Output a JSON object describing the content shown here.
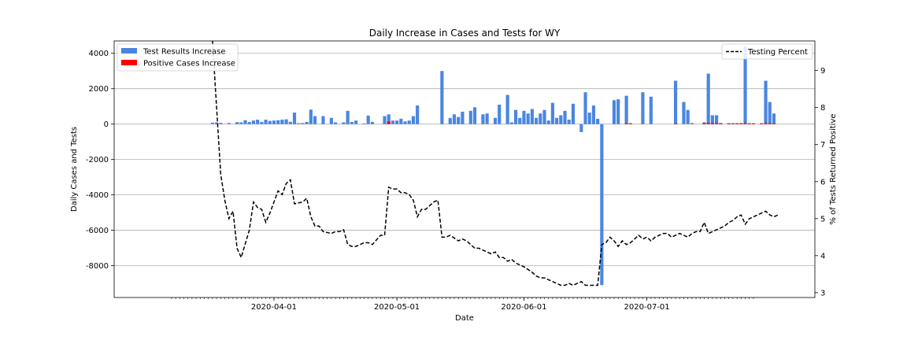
{
  "chart_data": {
    "type": "bar+line",
    "title": "Daily Increase in Cases and Tests for WY",
    "xlabel": "Date",
    "ylabel": "Daily Cases and Tests",
    "ylabel_right": "% of Tests Returned Positive",
    "x_start": "2020-03-07",
    "x_end": "2020-07-27",
    "x_ticks": [
      "2020-04-01",
      "2020-05-01",
      "2020-06-01",
      "2020-07-01"
    ],
    "ylim": [
      -9800,
      4700
    ],
    "yticks": [
      4000,
      2000,
      0,
      -2000,
      -4000,
      -6000,
      -8000
    ],
    "ylim_right": [
      2.87,
      9.8
    ],
    "yticks_right": [
      3,
      4,
      5,
      6,
      7,
      8,
      9
    ],
    "grid": "horizontal",
    "legend_left": "top-left",
    "legend_right": "top-right",
    "colors": {
      "tests": "#4a86e0",
      "positive": "#ff0000",
      "percent": "#000000",
      "grid": "#b0b0b0"
    },
    "series": [
      {
        "name": "Test Results Increase",
        "color": "#4a86e0",
        "points": [
          [
            "2020-03-17",
            80
          ],
          [
            "2020-03-18",
            100
          ],
          [
            "2020-03-19",
            70
          ],
          [
            "2020-03-21",
            60
          ],
          [
            "2020-03-23",
            110
          ],
          [
            "2020-03-24",
            100
          ],
          [
            "2020-03-25",
            220
          ],
          [
            "2020-03-26",
            120
          ],
          [
            "2020-03-27",
            200
          ],
          [
            "2020-03-28",
            250
          ],
          [
            "2020-03-29",
            120
          ],
          [
            "2020-03-30",
            250
          ],
          [
            "2020-03-31",
            180
          ],
          [
            "2020-04-01",
            200
          ],
          [
            "2020-04-02",
            220
          ],
          [
            "2020-04-03",
            250
          ],
          [
            "2020-04-04",
            270
          ],
          [
            "2020-04-05",
            130
          ],
          [
            "2020-04-06",
            650
          ],
          [
            "2020-04-07",
            50
          ],
          [
            "2020-04-08",
            60
          ],
          [
            "2020-04-09",
            120
          ],
          [
            "2020-04-10",
            820
          ],
          [
            "2020-04-11",
            450
          ],
          [
            "2020-04-13",
            450
          ],
          [
            "2020-04-15",
            350
          ],
          [
            "2020-04-16",
            100
          ],
          [
            "2020-04-18",
            100
          ],
          [
            "2020-04-19",
            750
          ],
          [
            "2020-04-20",
            120
          ],
          [
            "2020-04-21",
            200
          ],
          [
            "2020-04-23",
            40
          ],
          [
            "2020-04-24",
            480
          ],
          [
            "2020-04-25",
            120
          ],
          [
            "2020-04-28",
            450
          ],
          [
            "2020-04-29",
            550
          ],
          [
            "2020-04-30",
            200
          ],
          [
            "2020-05-01",
            200
          ],
          [
            "2020-05-02",
            300
          ],
          [
            "2020-05-03",
            150
          ],
          [
            "2020-05-04",
            200
          ],
          [
            "2020-05-05",
            450
          ],
          [
            "2020-05-06",
            1050
          ],
          [
            "2020-05-12",
            3000
          ],
          [
            "2020-05-14",
            350
          ],
          [
            "2020-05-15",
            550
          ],
          [
            "2020-05-16",
            400
          ],
          [
            "2020-05-17",
            700
          ],
          [
            "2020-05-19",
            750
          ],
          [
            "2020-05-20",
            950
          ],
          [
            "2020-05-22",
            550
          ],
          [
            "2020-05-23",
            600
          ],
          [
            "2020-05-25",
            350
          ],
          [
            "2020-05-26",
            1100
          ],
          [
            "2020-05-28",
            1650
          ],
          [
            "2020-05-29",
            100
          ],
          [
            "2020-05-30",
            800
          ],
          [
            "2020-05-31",
            350
          ],
          [
            "2020-06-01",
            750
          ],
          [
            "2020-06-02",
            600
          ],
          [
            "2020-06-03",
            850
          ],
          [
            "2020-06-04",
            350
          ],
          [
            "2020-06-05",
            600
          ],
          [
            "2020-06-06",
            800
          ],
          [
            "2020-06-07",
            200
          ],
          [
            "2020-06-08",
            1200
          ],
          [
            "2020-06-09",
            350
          ],
          [
            "2020-06-10",
            500
          ],
          [
            "2020-06-11",
            750
          ],
          [
            "2020-06-12",
            250
          ],
          [
            "2020-06-13",
            1150
          ],
          [
            "2020-06-15",
            -450
          ],
          [
            "2020-06-16",
            1800
          ],
          [
            "2020-06-17",
            650
          ],
          [
            "2020-06-18",
            1050
          ],
          [
            "2020-06-19",
            300
          ],
          [
            "2020-06-20",
            -9100
          ],
          [
            "2020-06-23",
            1350
          ],
          [
            "2020-06-24",
            1400
          ],
          [
            "2020-06-26",
            1600
          ],
          [
            "2020-06-30",
            1800
          ],
          [
            "2020-07-02",
            1550
          ],
          [
            "2020-07-08",
            2450
          ],
          [
            "2020-07-10",
            1250
          ],
          [
            "2020-07-11",
            800
          ],
          [
            "2020-07-12",
            60
          ],
          [
            "2020-07-15",
            100
          ],
          [
            "2020-07-16",
            2850
          ],
          [
            "2020-07-17",
            500
          ],
          [
            "2020-07-18",
            500
          ],
          [
            "2020-07-19",
            60
          ],
          [
            "2020-07-21",
            50
          ],
          [
            "2020-07-22",
            50
          ],
          [
            "2020-07-23",
            50
          ],
          [
            "2020-07-24",
            60
          ],
          [
            "2020-07-25",
            4400
          ],
          [
            "2020-07-26",
            50
          ],
          [
            "2020-07-27",
            50
          ],
          [
            "2020-07-29",
            50
          ],
          [
            "2020-07-30",
            2450
          ],
          [
            "2020-07-31",
            1250
          ],
          [
            "2020-08-01",
            600
          ]
        ]
      },
      {
        "name": "Positive Cases Increase",
        "color": "#ff0000",
        "points": [
          [
            "2020-04-29",
            150
          ],
          [
            "2020-06-26",
            50
          ],
          [
            "2020-06-27",
            50
          ],
          [
            "2020-07-08",
            40
          ],
          [
            "2020-07-15",
            60
          ],
          [
            "2020-07-16",
            70
          ],
          [
            "2020-07-17",
            70
          ],
          [
            "2020-07-18",
            60
          ],
          [
            "2020-07-19",
            50
          ],
          [
            "2020-07-21",
            40
          ],
          [
            "2020-07-22",
            40
          ],
          [
            "2020-07-23",
            50
          ],
          [
            "2020-07-24",
            40
          ],
          [
            "2020-07-25",
            60
          ],
          [
            "2020-07-26",
            40
          ],
          [
            "2020-07-27",
            40
          ],
          [
            "2020-07-29",
            40
          ],
          [
            "2020-07-30",
            60
          ],
          [
            "2020-07-31",
            50
          ],
          [
            "2020-08-01",
            40
          ]
        ]
      },
      {
        "name": "Testing Percent",
        "color": "#000000",
        "style": "dashed",
        "axis": "right",
        "points": [
          [
            "2020-03-17",
            9.8
          ],
          [
            "2020-03-19",
            6.2
          ],
          [
            "2020-03-20",
            5.5
          ],
          [
            "2020-03-21",
            5.0
          ],
          [
            "2020-03-22",
            5.2
          ],
          [
            "2020-03-23",
            4.2
          ],
          [
            "2020-03-24",
            3.95
          ],
          [
            "2020-03-26",
            4.7
          ],
          [
            "2020-03-27",
            5.45
          ],
          [
            "2020-03-28",
            5.3
          ],
          [
            "2020-03-29",
            5.25
          ],
          [
            "2020-03-30",
            4.9
          ],
          [
            "2020-03-31",
            5.15
          ],
          [
            "2020-04-02",
            5.75
          ],
          [
            "2020-04-03",
            5.65
          ],
          [
            "2020-04-04",
            5.95
          ],
          [
            "2020-04-05",
            6.05
          ],
          [
            "2020-04-06",
            5.4
          ],
          [
            "2020-04-08",
            5.45
          ],
          [
            "2020-04-09",
            5.55
          ],
          [
            "2020-04-10",
            5.05
          ],
          [
            "2020-04-11",
            4.8
          ],
          [
            "2020-04-12",
            4.8
          ],
          [
            "2020-04-13",
            4.65
          ],
          [
            "2020-04-15",
            4.6
          ],
          [
            "2020-04-16",
            4.65
          ],
          [
            "2020-04-17",
            4.65
          ],
          [
            "2020-04-18",
            4.7
          ],
          [
            "2020-04-19",
            4.3
          ],
          [
            "2020-04-20",
            4.25
          ],
          [
            "2020-04-21",
            4.25
          ],
          [
            "2020-04-23",
            4.35
          ],
          [
            "2020-04-24",
            4.35
          ],
          [
            "2020-04-25",
            4.3
          ],
          [
            "2020-04-27",
            4.55
          ],
          [
            "2020-04-28",
            4.55
          ],
          [
            "2020-04-29",
            5.85
          ],
          [
            "2020-04-30",
            5.8
          ],
          [
            "2020-05-01",
            5.8
          ],
          [
            "2020-05-02",
            5.7
          ],
          [
            "2020-05-03",
            5.7
          ],
          [
            "2020-05-04",
            5.65
          ],
          [
            "2020-05-05",
            5.5
          ],
          [
            "2020-05-06",
            5.05
          ],
          [
            "2020-05-07",
            5.25
          ],
          [
            "2020-05-08",
            5.25
          ],
          [
            "2020-05-09",
            5.35
          ],
          [
            "2020-05-10",
            5.45
          ],
          [
            "2020-05-11",
            5.5
          ],
          [
            "2020-05-12",
            4.5
          ],
          [
            "2020-05-13",
            4.5
          ],
          [
            "2020-05-14",
            4.55
          ],
          [
            "2020-05-16",
            4.4
          ],
          [
            "2020-05-17",
            4.45
          ],
          [
            "2020-05-18",
            4.4
          ],
          [
            "2020-05-19",
            4.3
          ],
          [
            "2020-05-20",
            4.2
          ],
          [
            "2020-05-21",
            4.2
          ],
          [
            "2020-05-22",
            4.15
          ],
          [
            "2020-05-24",
            4.05
          ],
          [
            "2020-05-25",
            4.1
          ],
          [
            "2020-05-26",
            3.95
          ],
          [
            "2020-05-27",
            3.95
          ],
          [
            "2020-05-28",
            3.85
          ],
          [
            "2020-05-29",
            3.9
          ],
          [
            "2020-05-30",
            3.8
          ],
          [
            "2020-06-01",
            3.7
          ],
          [
            "2020-06-03",
            3.55
          ],
          [
            "2020-06-04",
            3.45
          ],
          [
            "2020-06-05",
            3.4
          ],
          [
            "2020-06-06",
            3.4
          ],
          [
            "2020-06-07",
            3.35
          ],
          [
            "2020-06-08",
            3.3
          ],
          [
            "2020-06-09",
            3.25
          ],
          [
            "2020-06-10",
            3.2
          ],
          [
            "2020-06-11",
            3.2
          ],
          [
            "2020-06-12",
            3.25
          ],
          [
            "2020-06-13",
            3.2
          ],
          [
            "2020-06-14",
            3.25
          ],
          [
            "2020-06-15",
            3.3
          ],
          [
            "2020-06-16",
            3.2
          ],
          [
            "2020-06-17",
            3.2
          ],
          [
            "2020-06-19",
            3.2
          ],
          [
            "2020-06-20",
            4.3
          ],
          [
            "2020-06-21",
            4.35
          ],
          [
            "2020-06-22",
            4.5
          ],
          [
            "2020-06-23",
            4.4
          ],
          [
            "2020-06-24",
            4.25
          ],
          [
            "2020-06-25",
            4.4
          ],
          [
            "2020-06-26",
            4.3
          ],
          [
            "2020-06-27",
            4.35
          ],
          [
            "2020-06-28",
            4.45
          ],
          [
            "2020-06-29",
            4.55
          ],
          [
            "2020-06-30",
            4.45
          ],
          [
            "2020-07-01",
            4.5
          ],
          [
            "2020-07-02",
            4.4
          ],
          [
            "2020-07-03",
            4.5
          ],
          [
            "2020-07-05",
            4.6
          ],
          [
            "2020-07-06",
            4.6
          ],
          [
            "2020-07-07",
            4.5
          ],
          [
            "2020-07-08",
            4.55
          ],
          [
            "2020-07-09",
            4.6
          ],
          [
            "2020-07-10",
            4.55
          ],
          [
            "2020-07-11",
            4.5
          ],
          [
            "2020-07-12",
            4.6
          ],
          [
            "2020-07-13",
            4.65
          ],
          [
            "2020-07-14",
            4.65
          ],
          [
            "2020-07-15",
            4.9
          ],
          [
            "2020-07-16",
            4.6
          ],
          [
            "2020-07-17",
            4.65
          ],
          [
            "2020-07-18",
            4.7
          ],
          [
            "2020-07-19",
            4.75
          ],
          [
            "2020-07-20",
            4.8
          ],
          [
            "2020-07-21",
            4.9
          ],
          [
            "2020-07-22",
            4.95
          ],
          [
            "2020-07-23",
            5.05
          ],
          [
            "2020-07-24",
            5.1
          ],
          [
            "2020-07-25",
            4.85
          ],
          [
            "2020-07-26",
            5.0
          ],
          [
            "2020-07-27",
            5.05
          ],
          [
            "2020-07-28",
            5.1
          ],
          [
            "2020-07-29",
            5.15
          ],
          [
            "2020-07-30",
            5.2
          ],
          [
            "2020-07-31",
            5.1
          ],
          [
            "2020-08-01",
            5.05
          ],
          [
            "2020-08-02",
            5.1
          ]
        ]
      }
    ]
  }
}
